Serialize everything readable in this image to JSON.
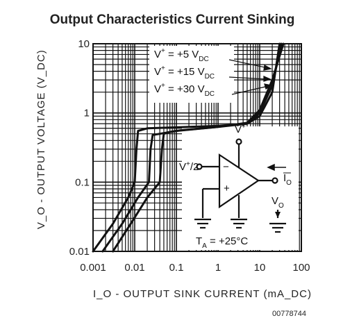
{
  "chart_data": {
    "type": "line",
    "title": "Output Characteristics Current Sinking",
    "xlabel": "I_O - OUTPUT SINK CURRENT (mA_DC)",
    "ylabel": "V_O - OUTPUT VOLTAGE (V_DC)",
    "x_scale": "log",
    "y_scale": "log",
    "xlim": [
      0.001,
      100
    ],
    "ylim": [
      0.01,
      10
    ],
    "x_ticks": [
      "0.001",
      "0.01",
      "0.1",
      "1",
      "10",
      "100"
    ],
    "y_ticks": [
      "0.01",
      "0.1",
      "1",
      "10"
    ],
    "grid": true,
    "series": [
      {
        "name": "V+ = +5 VDC",
        "x": [
          0.001,
          0.003,
          0.007,
          0.01,
          0.011,
          0.012,
          0.02,
          0.1,
          1,
          5,
          10,
          20,
          30
        ],
        "y": [
          0.01,
          0.025,
          0.06,
          0.1,
          0.3,
          0.55,
          0.6,
          0.62,
          0.65,
          0.7,
          0.9,
          2,
          10
        ]
      },
      {
        "name": "V+ = +15 VDC",
        "x": [
          0.0017,
          0.005,
          0.012,
          0.022,
          0.024,
          0.027,
          0.04,
          0.1,
          1,
          5,
          10,
          20,
          33
        ],
        "y": [
          0.01,
          0.025,
          0.06,
          0.1,
          0.3,
          0.48,
          0.5,
          0.55,
          0.63,
          0.7,
          1.0,
          2.5,
          10
        ]
      },
      {
        "name": "V+ = +30 VDC",
        "x": [
          0.003,
          0.008,
          0.02,
          0.04,
          0.045,
          0.05,
          0.07,
          0.12,
          1,
          5,
          10,
          20,
          37
        ],
        "y": [
          0.01,
          0.025,
          0.06,
          0.1,
          0.3,
          0.5,
          0.53,
          0.56,
          0.63,
          0.72,
          1.1,
          3,
          10
        ]
      }
    ]
  },
  "annotations": {
    "legend": [
      {
        "pre": "V",
        "sup": "+",
        "mid": " = +5 V",
        "sub": "DC"
      },
      {
        "pre": "V",
        "sup": "+",
        "mid": " = +15 V",
        "sub": "DC"
      },
      {
        "pre": "V",
        "sup": "+",
        "mid": " = +30 V",
        "sub": "DC"
      }
    ],
    "vplus": "V",
    "vplus_sup": "+",
    "vhalf": "V",
    "vhalf_sup": "+",
    "vhalf_rest": "/2",
    "minus": "−",
    "plus": "+",
    "io": "I",
    "io_sub": "O",
    "vo": "V",
    "vo_sub": "O",
    "ta": "T",
    "ta_sub": "A",
    "ta_rest": " = +25°C"
  },
  "figure_id": "00778744",
  "colors": {
    "ink": "#111111",
    "grid": "#111111"
  }
}
